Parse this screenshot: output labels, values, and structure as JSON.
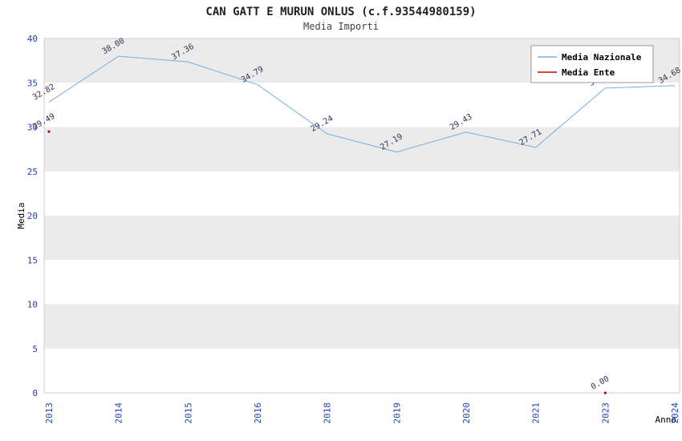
{
  "page": {
    "background": "#ffffff"
  },
  "chart_data": {
    "type": "line",
    "title": "CAN GATT E MURUN ONLUS (c.f.93544980159)",
    "subtitle": "Media Importi",
    "xlabel": "Anno",
    "ylabel": "Media",
    "ylim": [
      0,
      40
    ],
    "ytick_step": 5,
    "grid": "alternating-horizontal-bands",
    "legend_position": "top-right",
    "band_colors": [
      "#ebebeb",
      "#ffffff"
    ],
    "axis_tick_color": "#2244bb",
    "data_label_color": "#333355",
    "categories": [
      "2013",
      "2014",
      "2015",
      "2016",
      "2018",
      "2019",
      "2020",
      "2021",
      "2023",
      "2024"
    ],
    "series": [
      {
        "name": "Media Nazionale",
        "color": "#7aaede",
        "values": [
          32.82,
          38.0,
          37.36,
          34.79,
          29.24,
          27.19,
          29.43,
          27.71,
          34.4,
          34.68
        ]
      },
      {
        "name": "Media Ente",
        "color": "#cc0000",
        "values": [
          29.49,
          null,
          null,
          null,
          null,
          null,
          null,
          null,
          0.0,
          null
        ]
      }
    ]
  }
}
